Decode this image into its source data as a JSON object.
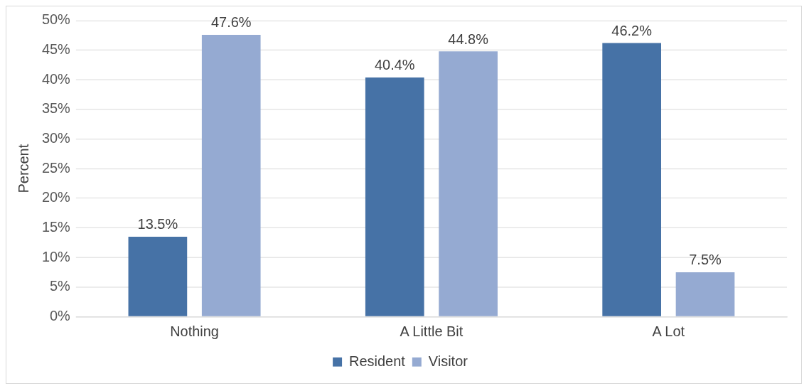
{
  "chart_data": {
    "type": "bar",
    "ylabel": "Percent",
    "categories": [
      "Nothing",
      "A Little Bit",
      "A Lot"
    ],
    "series": [
      {
        "name": "Resident",
        "color": "#4672a6",
        "values": [
          13.5,
          40.4,
          46.2
        ],
        "value_labels": [
          "13.5%",
          "40.4%",
          "46.2%"
        ]
      },
      {
        "name": "Visitor",
        "color": "#95aad2",
        "values": [
          47.6,
          44.8,
          7.5
        ],
        "value_labels": [
          "47.6%",
          "44.8%",
          "7.5%"
        ]
      }
    ],
    "ylim": [
      0,
      50
    ],
    "yticks": [
      {
        "value": 0,
        "label": "0%"
      },
      {
        "value": 5,
        "label": "5%"
      },
      {
        "value": 10,
        "label": "10%"
      },
      {
        "value": 15,
        "label": "15%"
      },
      {
        "value": 20,
        "label": "20%"
      },
      {
        "value": 25,
        "label": "25%"
      },
      {
        "value": 30,
        "label": "30%"
      },
      {
        "value": 35,
        "label": "35%"
      },
      {
        "value": 40,
        "label": "40%"
      },
      {
        "value": 45,
        "label": "45%"
      },
      {
        "value": 50,
        "label": "50%"
      }
    ],
    "grid": "y",
    "legend": "bottom"
  }
}
